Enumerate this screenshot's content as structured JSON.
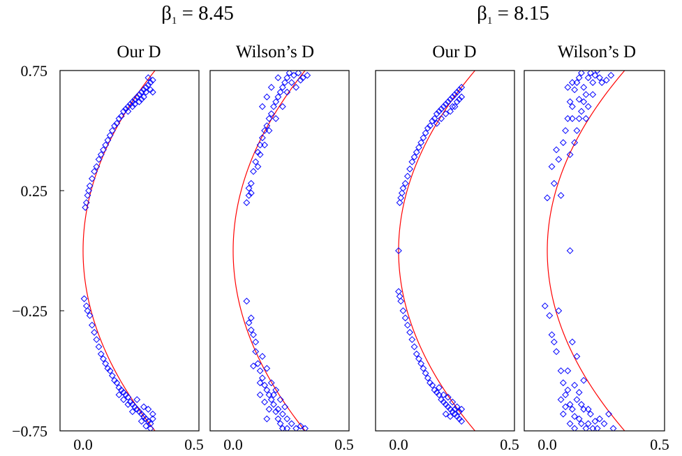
{
  "figure": {
    "groups": [
      {
        "beta_symbol": "β",
        "beta_subscript": "1",
        "beta_rest": " = 8.45"
      },
      {
        "beta_symbol": "β",
        "beta_subscript": "1",
        "beta_rest": " = 8.15"
      }
    ]
  },
  "colors": {
    "points": "#0000ff",
    "curve": "#ff0000",
    "frame": "#000000"
  },
  "chart_data": [
    {
      "type": "scatter",
      "title": "Our D",
      "group": "β1 = 8.45",
      "xlim": [
        0,
        0.5
      ],
      "ylim": [
        -0.75,
        0.75
      ],
      "x_ticks": [
        "0.0",
        "0.5"
      ],
      "y_ticks": [
        "0.75",
        "0.25",
        "−0.25",
        "−0.75"
      ],
      "y_tick_values": [
        0.75,
        0.25,
        -0.25,
        -0.75
      ],
      "marker": "diamond",
      "curve": {
        "type": "line",
        "x_at_zero": 0.0,
        "x_at_0.75": 0.32
      },
      "points": [
        [
          0.01,
          0.18
        ],
        [
          0.015,
          0.2
        ],
        [
          0.02,
          0.23
        ],
        [
          0.025,
          0.25
        ],
        [
          0.03,
          0.27
        ],
        [
          0.04,
          0.3
        ],
        [
          0.05,
          0.33
        ],
        [
          0.06,
          0.35
        ],
        [
          0.07,
          0.38
        ],
        [
          0.08,
          0.4
        ],
        [
          0.09,
          0.42
        ],
        [
          0.1,
          0.44
        ],
        [
          0.11,
          0.46
        ],
        [
          0.12,
          0.48
        ],
        [
          0.13,
          0.5
        ],
        [
          0.14,
          0.52
        ],
        [
          0.15,
          0.53
        ],
        [
          0.16,
          0.55
        ],
        [
          0.17,
          0.56
        ],
        [
          0.18,
          0.58
        ],
        [
          0.19,
          0.59
        ],
        [
          0.2,
          0.6
        ],
        [
          0.21,
          0.61
        ],
        [
          0.22,
          0.62
        ],
        [
          0.23,
          0.63
        ],
        [
          0.24,
          0.64
        ],
        [
          0.25,
          0.65
        ],
        [
          0.26,
          0.66
        ],
        [
          0.27,
          0.67
        ],
        [
          0.28,
          0.68
        ],
        [
          0.29,
          0.69
        ],
        [
          0.3,
          0.7
        ],
        [
          0.31,
          0.71
        ],
        [
          0.2,
          0.58
        ],
        [
          0.23,
          0.61
        ],
        [
          0.26,
          0.63
        ],
        [
          0.28,
          0.66
        ],
        [
          0.3,
          0.67
        ],
        [
          0.29,
          0.72
        ],
        [
          0.31,
          0.66
        ],
        [
          0.27,
          0.64
        ],
        [
          0.25,
          0.62
        ],
        [
          0.22,
          0.6
        ],
        [
          0.005,
          -0.2
        ],
        [
          0.015,
          -0.23
        ],
        [
          0.02,
          -0.25
        ],
        [
          0.03,
          -0.27
        ],
        [
          0.04,
          -0.31
        ],
        [
          0.05,
          -0.34
        ],
        [
          0.06,
          -0.37
        ],
        [
          0.07,
          -0.4
        ],
        [
          0.08,
          -0.43
        ],
        [
          0.09,
          -0.45
        ],
        [
          0.1,
          -0.47
        ],
        [
          0.11,
          -0.49
        ],
        [
          0.12,
          -0.5
        ],
        [
          0.13,
          -0.52
        ],
        [
          0.14,
          -0.54
        ],
        [
          0.15,
          -0.55
        ],
        [
          0.16,
          -0.57
        ],
        [
          0.17,
          -0.58
        ],
        [
          0.18,
          -0.59
        ],
        [
          0.19,
          -0.6
        ],
        [
          0.2,
          -0.61
        ],
        [
          0.21,
          -0.63
        ],
        [
          0.22,
          -0.64
        ],
        [
          0.23,
          -0.65
        ],
        [
          0.24,
          -0.66
        ],
        [
          0.25,
          -0.67
        ],
        [
          0.26,
          -0.68
        ],
        [
          0.27,
          -0.69
        ],
        [
          0.28,
          -0.7
        ],
        [
          0.29,
          -0.71
        ],
        [
          0.3,
          -0.72
        ],
        [
          0.31,
          -0.68
        ],
        [
          0.24,
          -0.62
        ],
        [
          0.27,
          -0.65
        ],
        [
          0.29,
          -0.66
        ],
        [
          0.31,
          -0.7
        ],
        [
          0.26,
          -0.71
        ],
        [
          0.28,
          -0.73
        ],
        [
          0.3,
          -0.74
        ],
        [
          0.22,
          -0.67
        ],
        [
          0.2,
          -0.64
        ],
        [
          0.18,
          -0.62
        ],
        [
          0.16,
          -0.6
        ]
      ]
    },
    {
      "type": "scatter",
      "title": "Wilson’s D",
      "group": "β1 = 8.45",
      "xlim": [
        0,
        0.5
      ],
      "ylim": [
        -0.75,
        0.75
      ],
      "x_ticks": [
        "0.0",
        "0.5"
      ],
      "marker": "diamond",
      "curve": {
        "type": "line",
        "x_at_zero": 0.0,
        "x_at_0.75": 0.32
      },
      "points": [
        [
          0.06,
          0.2
        ],
        [
          0.07,
          0.23
        ],
        [
          0.08,
          0.28
        ],
        [
          0.09,
          0.33
        ],
        [
          0.1,
          0.37
        ],
        [
          0.11,
          0.41
        ],
        [
          0.12,
          0.44
        ],
        [
          0.13,
          0.47
        ],
        [
          0.14,
          0.5
        ],
        [
          0.15,
          0.52
        ],
        [
          0.16,
          0.55
        ],
        [
          0.17,
          0.57
        ],
        [
          0.18,
          0.6
        ],
        [
          0.19,
          0.62
        ],
        [
          0.2,
          0.64
        ],
        [
          0.21,
          0.66
        ],
        [
          0.22,
          0.68
        ],
        [
          0.23,
          0.7
        ],
        [
          0.24,
          0.72
        ],
        [
          0.25,
          0.74
        ],
        [
          0.27,
          0.73
        ],
        [
          0.29,
          0.74
        ],
        [
          0.31,
          0.72
        ],
        [
          0.33,
          0.73
        ],
        [
          0.13,
          0.6
        ],
        [
          0.15,
          0.64
        ],
        [
          0.17,
          0.68
        ],
        [
          0.2,
          0.72
        ],
        [
          0.22,
          0.6
        ],
        [
          0.24,
          0.66
        ],
        [
          0.26,
          0.7
        ],
        [
          0.28,
          0.68
        ],
        [
          0.3,
          0.71
        ],
        [
          0.19,
          0.55
        ],
        [
          0.16,
          0.5
        ],
        [
          0.14,
          0.44
        ],
        [
          0.12,
          0.4
        ],
        [
          0.11,
          0.35
        ],
        [
          0.08,
          0.24
        ],
        [
          0.07,
          0.26
        ],
        [
          0.06,
          -0.21
        ],
        [
          0.07,
          -0.3
        ],
        [
          0.08,
          -0.33
        ],
        [
          0.09,
          -0.35
        ],
        [
          0.1,
          -0.42
        ],
        [
          0.11,
          -0.47
        ],
        [
          0.12,
          -0.5
        ],
        [
          0.13,
          -0.53
        ],
        [
          0.14,
          -0.56
        ],
        [
          0.15,
          -0.58
        ],
        [
          0.16,
          -0.6
        ],
        [
          0.17,
          -0.62
        ],
        [
          0.18,
          -0.64
        ],
        [
          0.19,
          -0.67
        ],
        [
          0.2,
          -0.7
        ],
        [
          0.21,
          -0.72
        ],
        [
          0.22,
          -0.74
        ],
        [
          0.24,
          -0.7
        ],
        [
          0.26,
          -0.72
        ],
        [
          0.28,
          -0.74
        ],
        [
          0.3,
          -0.73
        ],
        [
          0.32,
          -0.74
        ],
        [
          0.12,
          -0.6
        ],
        [
          0.14,
          -0.63
        ],
        [
          0.16,
          -0.66
        ],
        [
          0.18,
          -0.6
        ],
        [
          0.2,
          -0.66
        ],
        [
          0.22,
          -0.68
        ],
        [
          0.24,
          -0.74
        ],
        [
          0.1,
          -0.38
        ],
        [
          0.13,
          -0.44
        ],
        [
          0.15,
          -0.49
        ],
        [
          0.17,
          -0.55
        ],
        [
          0.19,
          -0.58
        ],
        [
          0.21,
          -0.62
        ],
        [
          0.23,
          -0.65
        ],
        [
          0.15,
          -0.7
        ],
        [
          0.12,
          -0.55
        ],
        [
          0.09,
          -0.48
        ],
        [
          0.08,
          -0.28
        ]
      ]
    },
    {
      "type": "scatter",
      "title": "Our D",
      "group": "β1 = 8.15",
      "xlim": [
        0,
        0.5
      ],
      "ylim": [
        -0.75,
        0.75
      ],
      "x_ticks": [
        "0.0",
        "0.5"
      ],
      "marker": "diamond",
      "curve": {
        "type": "line",
        "x_at_zero": 0.0,
        "x_at_0.75": 0.34
      },
      "points": [
        [
          0.0,
          0.0
        ],
        [
          0.005,
          0.2
        ],
        [
          0.01,
          0.22
        ],
        [
          0.015,
          0.24
        ],
        [
          0.02,
          0.26
        ],
        [
          0.03,
          0.28
        ],
        [
          0.04,
          0.31
        ],
        [
          0.05,
          0.34
        ],
        [
          0.06,
          0.37
        ],
        [
          0.07,
          0.39
        ],
        [
          0.08,
          0.41
        ],
        [
          0.09,
          0.43
        ],
        [
          0.1,
          0.45
        ],
        [
          0.11,
          0.47
        ],
        [
          0.12,
          0.49
        ],
        [
          0.13,
          0.51
        ],
        [
          0.14,
          0.52
        ],
        [
          0.15,
          0.54
        ],
        [
          0.16,
          0.55
        ],
        [
          0.17,
          0.57
        ],
        [
          0.18,
          0.58
        ],
        [
          0.19,
          0.59
        ],
        [
          0.2,
          0.6
        ],
        [
          0.21,
          0.61
        ],
        [
          0.22,
          0.62
        ],
        [
          0.23,
          0.63
        ],
        [
          0.24,
          0.64
        ],
        [
          0.25,
          0.65
        ],
        [
          0.26,
          0.66
        ],
        [
          0.27,
          0.67
        ],
        [
          0.28,
          0.68
        ],
        [
          0.27,
          0.63
        ],
        [
          0.25,
          0.6
        ],
        [
          0.23,
          0.58
        ],
        [
          0.21,
          0.57
        ],
        [
          0.19,
          0.55
        ],
        [
          0.17,
          0.53
        ],
        [
          0.28,
          0.64
        ],
        [
          0.26,
          0.62
        ],
        [
          0.24,
          0.6
        ],
        [
          0.005,
          -0.19
        ],
        [
          0.01,
          -0.21
        ],
        [
          0.02,
          -0.25
        ],
        [
          0.03,
          -0.28
        ],
        [
          0.04,
          -0.31
        ],
        [
          0.05,
          -0.34
        ],
        [
          0.06,
          -0.37
        ],
        [
          0.07,
          -0.4
        ],
        [
          0.08,
          -0.43
        ],
        [
          0.09,
          -0.45
        ],
        [
          0.1,
          -0.47
        ],
        [
          0.11,
          -0.49
        ],
        [
          0.12,
          -0.51
        ],
        [
          0.13,
          -0.53
        ],
        [
          0.14,
          -0.55
        ],
        [
          0.15,
          -0.56
        ],
        [
          0.16,
          -0.58
        ],
        [
          0.17,
          -0.59
        ],
        [
          0.18,
          -0.6
        ],
        [
          0.19,
          -0.62
        ],
        [
          0.2,
          -0.63
        ],
        [
          0.21,
          -0.64
        ],
        [
          0.22,
          -0.65
        ],
        [
          0.23,
          -0.66
        ],
        [
          0.24,
          -0.67
        ],
        [
          0.25,
          -0.68
        ],
        [
          0.26,
          -0.69
        ],
        [
          0.27,
          -0.7
        ],
        [
          0.28,
          -0.71
        ],
        [
          0.26,
          -0.65
        ],
        [
          0.24,
          -0.63
        ],
        [
          0.22,
          -0.61
        ],
        [
          0.2,
          -0.6
        ],
        [
          0.18,
          -0.57
        ],
        [
          0.27,
          -0.67
        ],
        [
          0.25,
          -0.66
        ],
        [
          0.23,
          -0.69
        ],
        [
          0.21,
          -0.68
        ],
        [
          0.28,
          -0.66
        ],
        [
          0.0,
          -0.17
        ]
      ]
    },
    {
      "type": "scatter",
      "title": "Wilson’s D",
      "group": "β1 = 8.15",
      "xlim": [
        0,
        0.5
      ],
      "ylim": [
        -0.75,
        0.75
      ],
      "x_ticks": [
        "0.0",
        "0.5"
      ],
      "marker": "diamond",
      "curve": {
        "type": "line",
        "x_at_zero": 0.0,
        "x_at_0.75": 0.34
      },
      "points": [
        [
          0.0,
          0.22
        ],
        [
          0.02,
          0.35
        ],
        [
          0.03,
          0.28
        ],
        [
          0.04,
          0.42
        ],
        [
          0.05,
          0.38
        ],
        [
          0.06,
          0.23
        ],
        [
          0.07,
          0.45
        ],
        [
          0.08,
          0.5
        ],
        [
          0.09,
          0.55
        ],
        [
          0.1,
          0.62
        ],
        [
          0.11,
          0.6
        ],
        [
          0.12,
          0.67
        ],
        [
          0.13,
          0.7
        ],
        [
          0.14,
          0.72
        ],
        [
          0.15,
          0.74
        ],
        [
          0.16,
          0.68
        ],
        [
          0.17,
          0.65
        ],
        [
          0.18,
          0.72
        ],
        [
          0.19,
          0.74
        ],
        [
          0.2,
          0.7
        ],
        [
          0.21,
          0.73
        ],
        [
          0.22,
          0.75
        ],
        [
          0.23,
          0.72
        ],
        [
          0.24,
          0.7
        ],
        [
          0.26,
          0.71
        ],
        [
          0.28,
          0.73
        ],
        [
          0.1,
          0.4
        ],
        [
          0.12,
          0.45
        ],
        [
          0.14,
          0.55
        ],
        [
          0.15,
          0.58
        ],
        [
          0.16,
          0.62
        ],
        [
          0.18,
          0.6
        ],
        [
          0.2,
          0.65
        ],
        [
          0.13,
          0.5
        ],
        [
          0.11,
          0.55
        ],
        [
          0.17,
          0.55
        ],
        [
          0.1,
          0.0
        ],
        [
          0.09,
          0.68
        ],
        [
          0.11,
          0.7
        ],
        [
          0.14,
          0.63
        ],
        [
          -0.01,
          -0.23
        ],
        [
          0.01,
          -0.27
        ],
        [
          0.02,
          -0.35
        ],
        [
          0.03,
          -0.38
        ],
        [
          0.04,
          -0.42
        ],
        [
          0.05,
          -0.25
        ],
        [
          0.06,
          -0.5
        ],
        [
          0.07,
          -0.55
        ],
        [
          0.08,
          -0.6
        ],
        [
          0.09,
          -0.58
        ],
        [
          0.1,
          -0.64
        ],
        [
          0.11,
          -0.66
        ],
        [
          0.12,
          -0.69
        ],
        [
          0.13,
          -0.62
        ],
        [
          0.14,
          -0.7
        ],
        [
          0.15,
          -0.72
        ],
        [
          0.16,
          -0.66
        ],
        [
          0.17,
          -0.74
        ],
        [
          0.18,
          -0.72
        ],
        [
          0.19,
          -0.68
        ],
        [
          0.2,
          -0.74
        ],
        [
          0.21,
          -0.71
        ],
        [
          0.22,
          -0.74
        ],
        [
          0.23,
          -0.7
        ],
        [
          0.25,
          -0.72
        ],
        [
          0.27,
          -0.68
        ],
        [
          0.29,
          -0.74
        ],
        [
          0.12,
          -0.56
        ],
        [
          0.14,
          -0.59
        ],
        [
          0.16,
          -0.54
        ],
        [
          0.13,
          -0.44
        ],
        [
          0.11,
          -0.38
        ],
        [
          0.09,
          -0.5
        ],
        [
          0.08,
          -0.65
        ],
        [
          0.1,
          -0.72
        ],
        [
          0.12,
          -0.74
        ],
        [
          0.15,
          -0.64
        ],
        [
          0.18,
          -0.66
        ],
        [
          0.06,
          -0.62
        ],
        [
          0.07,
          -0.68
        ]
      ]
    }
  ]
}
